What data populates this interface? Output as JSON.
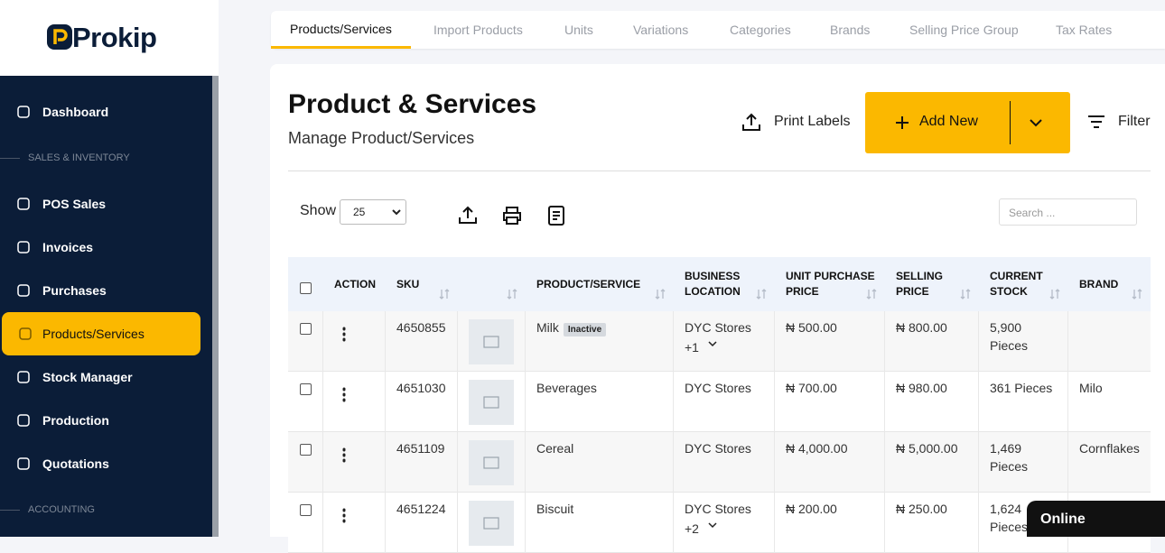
{
  "brand": "Prokip",
  "sidebar": {
    "items": [
      {
        "label": "Dashboard"
      },
      {
        "section": "SALES & INVENTORY"
      },
      {
        "label": "POS Sales"
      },
      {
        "label": "Invoices"
      },
      {
        "label": "Purchases"
      },
      {
        "label": "Products/Services",
        "active": true
      },
      {
        "label": "Stock Manager"
      },
      {
        "label": "Production"
      },
      {
        "label": "Quotations"
      },
      {
        "section": "ACCOUNTING"
      }
    ]
  },
  "tabs": [
    "Products/Services",
    "Import Products",
    "Units",
    "Variations",
    "Categories",
    "Brands",
    "Selling Price Group",
    "Tax Rates"
  ],
  "header": {
    "title": "Product & Services",
    "subtitle": "Manage Product/Services",
    "print_labels": "Print Labels",
    "add_new": "Add New",
    "filter": "Filter"
  },
  "controls": {
    "show": "Show",
    "page_size": "25",
    "search_placeholder": "Search ..."
  },
  "table": {
    "columns": [
      "ACTION",
      "SKU",
      "PRODUCT/SERVICE",
      "BUSINESS LOCATION",
      "UNIT PURCHASE PRICE",
      "SELLING PRICE",
      "CURRENT STOCK",
      "BRAND"
    ],
    "rows": [
      {
        "sku": "4650855",
        "product": "Milk",
        "badge": "Inactive",
        "location": "DYC Stores",
        "location_extra": "+1",
        "purchase": "₦ 500.00",
        "selling": "₦ 800.00",
        "stock": "5,900 Pieces"
      },
      {
        "sku": "4651030",
        "product": "Beverages",
        "location": "DYC Stores",
        "purchase": "₦ 700.00",
        "selling": "₦ 980.00",
        "stock": "361 Pieces",
        "brand": "Milo"
      },
      {
        "sku": "4651109",
        "product": "Cereal",
        "location": "DYC Stores",
        "purchase": "₦ 4,000.00",
        "selling": "₦ 5,000.00",
        "stock": "1,469 Pieces",
        "brand": "Cornflakes"
      },
      {
        "sku": "4651224",
        "product": "Biscuit",
        "location": "DYC Stores",
        "location_extra": "+2",
        "purchase": "₦ 200.00",
        "selling": "₦ 250.00",
        "stock": "1,624 Pieces"
      }
    ]
  },
  "status": "Online"
}
